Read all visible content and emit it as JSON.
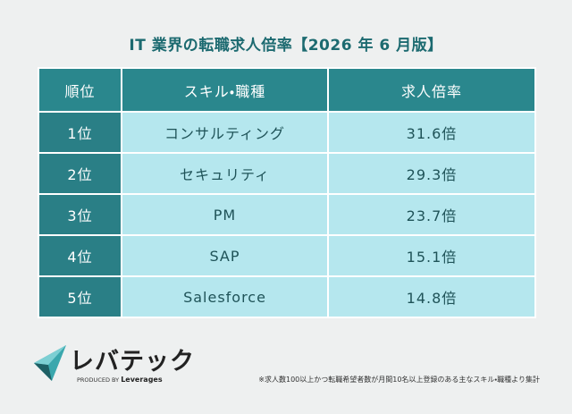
{
  "header": {
    "title": "IT 業界の転職求人倍率【2026 年 6 月版】"
  },
  "table": {
    "columns": [
      "順位",
      "スキル・職種",
      "求人倍率"
    ],
    "rows": [
      [
        "1位",
        "コンサルティング",
        "31.6倍"
      ],
      [
        "2位",
        "セキュリティ",
        "29.3倍"
      ],
      [
        "3位",
        "PM",
        "23.7倍"
      ],
      [
        "4位",
        "SAP",
        "15.1倍"
      ],
      [
        "5位",
        "Salesforce",
        "14.8倍"
      ]
    ]
  },
  "logo": {
    "name": "レバテック",
    "tagline": "PRODUCED BY",
    "brand": "Leverages"
  },
  "footnote": "※求人数100以上かつ転職希望者数が月間10名以上登録のある主なスキル・職種より集計"
}
